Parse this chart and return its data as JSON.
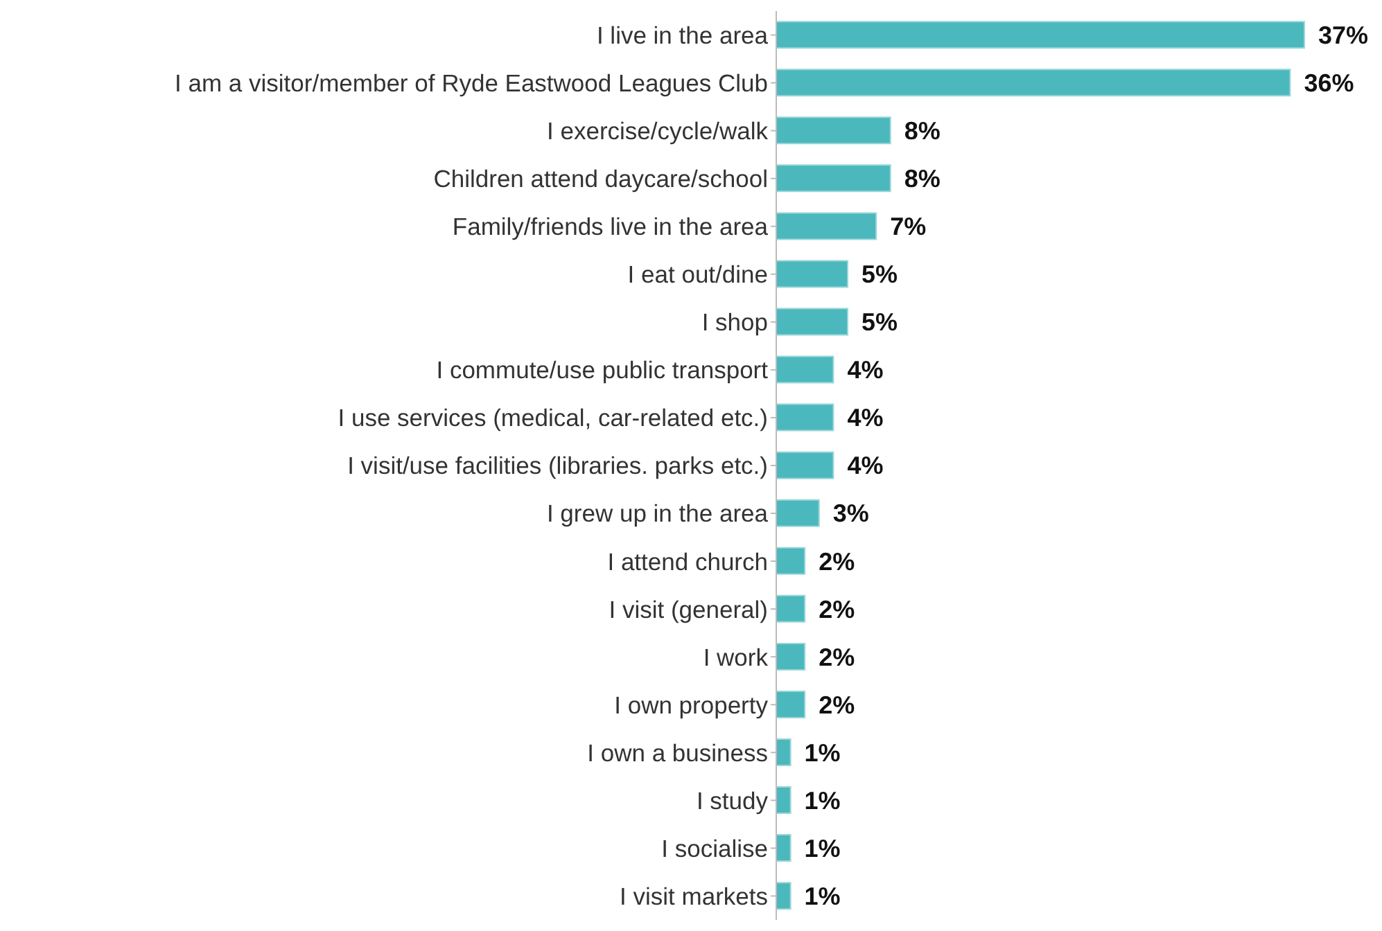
{
  "chart_data": {
    "type": "bar",
    "orientation": "horizontal",
    "tick_labels": "y",
    "categories": [
      "I live in the area",
      "I am a visitor/member of Ryde Eastwood Leagues Club",
      "I exercise/cycle/walk",
      "Children attend daycare/school",
      "Family/friends live in the area",
      "I eat out/dine",
      "I shop",
      "I commute/use public transport",
      "I use services (medical, car-related etc.)",
      "I visit/use facilities (libraries. parks etc.)",
      "I grew up in the area",
      "I attend church",
      "I visit (general)",
      "I work",
      "I own property",
      "I own a business",
      "I study",
      "I socialise",
      "I visit markets"
    ],
    "values": [
      37,
      36,
      8,
      8,
      7,
      5,
      5,
      4,
      4,
      4,
      3,
      2,
      2,
      2,
      2,
      1,
      1,
      1,
      1
    ],
    "value_labels": [
      "37%",
      "36%",
      "8%",
      "8%",
      "7%",
      "5%",
      "5%",
      "4%",
      "4%",
      "4%",
      "3%",
      "2%",
      "2%",
      "2%",
      "2%",
      "1%",
      "1%",
      "1%",
      "1%"
    ],
    "color": "#4bb8bd",
    "grid": false
  }
}
